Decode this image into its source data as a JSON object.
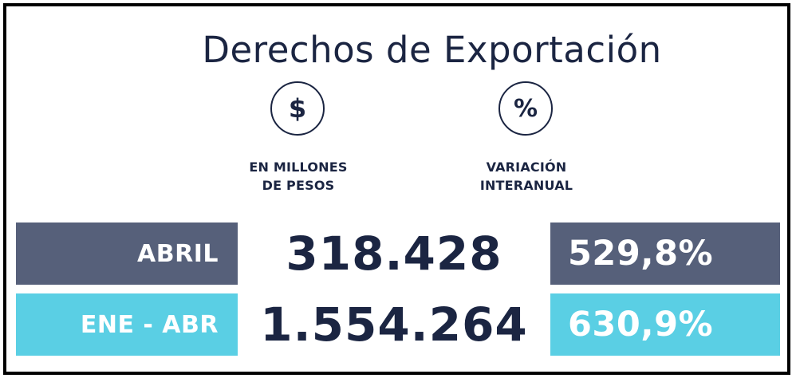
{
  "title": "Derechos de Exportación",
  "icons": {
    "currency": {
      "name": "dollar-icon",
      "glyph": "$"
    },
    "percent": {
      "name": "percent-icon",
      "glyph": "%"
    }
  },
  "columns": {
    "pesos": {
      "line1": "EN MILLONES",
      "line2": "DE PESOS"
    },
    "variation": {
      "line1": "VARIACIÓN",
      "line2": "INTERANUAL"
    }
  },
  "rows": [
    {
      "label": "ABRIL",
      "value": "318.428",
      "variation": "529,8%"
    },
    {
      "label": "ENE - ABR",
      "value": "1.554.264",
      "variation": "630,9%"
    }
  ],
  "colors": {
    "text_dark": "#1b2542",
    "row1_bg": "#56607a",
    "row2_bg": "#5acfe4",
    "frame": "#000000"
  }
}
